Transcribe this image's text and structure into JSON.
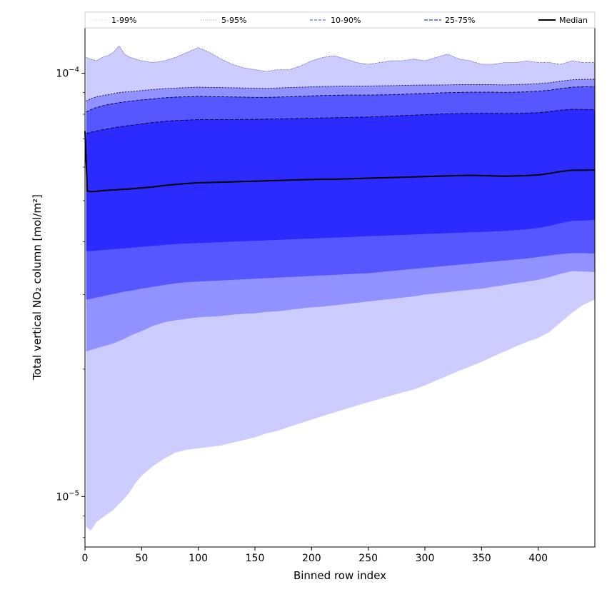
{
  "chart_data": {
    "type": "area",
    "xlabel": "Binned row index",
    "ylabel": "Total vertical NO₂ column [mol/m²]",
    "xlim": [
      0,
      450
    ],
    "ylim": [
      7.6e-06,
      0.000128
    ],
    "y_scale": "log",
    "x_ticks": [
      0,
      50,
      100,
      150,
      200,
      250,
      300,
      350,
      400
    ],
    "y_major_ticks": [
      {
        "value": 1e-05,
        "base": "10",
        "exp": "−5"
      },
      {
        "value": 0.0001,
        "base": "10",
        "exp": "−4"
      }
    ],
    "grid": false,
    "legend_position": "top",
    "bands": [
      {
        "name": "1-99%",
        "color": "#ccccff",
        "x": [
          1,
          5,
          10,
          15,
          20,
          25,
          30,
          35,
          40,
          45,
          50,
          60,
          70,
          80,
          90,
          100,
          110,
          120,
          130,
          140,
          150,
          160,
          170,
          180,
          190,
          200,
          210,
          220,
          230,
          240,
          250,
          260,
          270,
          280,
          290,
          300,
          310,
          320,
          330,
          340,
          350,
          360,
          370,
          380,
          390,
          400,
          410,
          420,
          430,
          440,
          450
        ],
        "lower": [
          8.5e-06,
          8.3e-06,
          8.7e-06,
          8.9e-06,
          9.1e-06,
          9.3e-06,
          9.6e-06,
          9.9e-06,
          1.03e-05,
          1.08e-05,
          1.12e-05,
          1.18e-05,
          1.23e-05,
          1.27e-05,
          1.29e-05,
          1.3e-05,
          1.31e-05,
          1.32e-05,
          1.34e-05,
          1.36e-05,
          1.38e-05,
          1.41e-05,
          1.43e-05,
          1.46e-05,
          1.49e-05,
          1.52e-05,
          1.55e-05,
          1.58e-05,
          1.61e-05,
          1.64e-05,
          1.67e-05,
          1.7e-05,
          1.73e-05,
          1.76e-05,
          1.79e-05,
          1.83e-05,
          1.88e-05,
          1.93e-05,
          1.98e-05,
          2.03e-05,
          2.08e-05,
          2.14e-05,
          2.2e-05,
          2.26e-05,
          2.32e-05,
          2.37e-05,
          2.45e-05,
          2.58e-05,
          2.72e-05,
          2.84e-05,
          2.92e-05
        ],
        "upper": [
          0.000109,
          0.000108,
          0.000107,
          0.000109,
          0.00011,
          0.000112,
          0.000116,
          0.000111,
          0.000109,
          0.000108,
          0.000107,
          0.000106,
          0.000107,
          0.000109,
          0.000112,
          0.000115,
          0.000112,
          0.000108,
          0.000105,
          0.000103,
          0.000102,
          0.000101,
          0.000102,
          0.000102,
          0.000104,
          0.000107,
          0.000109,
          0.00011,
          0.000108,
          0.000106,
          0.000105,
          0.000106,
          0.000107,
          0.000107,
          0.000108,
          0.000107,
          0.000109,
          0.000111,
          0.000108,
          0.000107,
          0.000105,
          0.000105,
          0.000106,
          0.000106,
          0.000107,
          0.000106,
          0.000106,
          0.000105,
          0.000107,
          0.000106,
          0.000106
        ]
      },
      {
        "name": "5-95%",
        "color": "#9191ff",
        "x": [
          1,
          5,
          10,
          15,
          20,
          25,
          30,
          35,
          40,
          45,
          50,
          60,
          70,
          80,
          90,
          100,
          110,
          120,
          130,
          140,
          150,
          160,
          170,
          180,
          190,
          200,
          210,
          220,
          230,
          240,
          250,
          260,
          270,
          280,
          290,
          300,
          310,
          320,
          330,
          340,
          350,
          360,
          370,
          380,
          390,
          400,
          410,
          420,
          430,
          440,
          450
        ],
        "lower": [
          2.2e-05,
          2.22e-05,
          2.24e-05,
          2.26e-05,
          2.28e-05,
          2.3e-05,
          2.33e-05,
          2.36e-05,
          2.4e-05,
          2.43e-05,
          2.46e-05,
          2.53e-05,
          2.58e-05,
          2.61e-05,
          2.63e-05,
          2.65e-05,
          2.66e-05,
          2.67e-05,
          2.69e-05,
          2.7e-05,
          2.71e-05,
          2.73e-05,
          2.74e-05,
          2.76e-05,
          2.78e-05,
          2.8e-05,
          2.81e-05,
          2.83e-05,
          2.85e-05,
          2.87e-05,
          2.89e-05,
          2.91e-05,
          2.93e-05,
          2.95e-05,
          2.97e-05,
          3e-05,
          3.02e-05,
          3.04e-05,
          3.06e-05,
          3.08e-05,
          3.1e-05,
          3.13e-05,
          3.16e-05,
          3.19e-05,
          3.22e-05,
          3.25e-05,
          3.3e-05,
          3.36e-05,
          3.41e-05,
          3.4e-05,
          3.39e-05
        ],
        "upper": [
          8.6e-05,
          8.7e-05,
          8.8e-05,
          8.85e-05,
          8.9e-05,
          8.95e-05,
          9e-05,
          9.03e-05,
          9.05e-05,
          9.07e-05,
          9.1e-05,
          9.15e-05,
          9.2e-05,
          9.22e-05,
          9.25e-05,
          9.27e-05,
          9.26e-05,
          9.25e-05,
          9.24e-05,
          9.23e-05,
          9.22e-05,
          9.21e-05,
          9.23e-05,
          9.25e-05,
          9.27e-05,
          9.29e-05,
          9.31e-05,
          9.32e-05,
          9.33e-05,
          9.33e-05,
          9.33e-05,
          9.34e-05,
          9.35e-05,
          9.36e-05,
          9.37e-05,
          9.38e-05,
          9.38e-05,
          9.39e-05,
          9.4e-05,
          9.4e-05,
          9.4e-05,
          9.4e-05,
          9.39e-05,
          9.4e-05,
          9.42e-05,
          9.45e-05,
          9.5e-05,
          9.58e-05,
          9.65e-05,
          9.67e-05,
          9.68e-05
        ]
      },
      {
        "name": "10-90%",
        "color": "#5757ff",
        "x": [
          1,
          5,
          10,
          15,
          20,
          25,
          30,
          35,
          40,
          45,
          50,
          60,
          70,
          80,
          90,
          100,
          110,
          120,
          130,
          140,
          150,
          160,
          170,
          180,
          190,
          200,
          210,
          220,
          230,
          240,
          250,
          260,
          270,
          280,
          290,
          300,
          310,
          320,
          330,
          340,
          350,
          360,
          370,
          380,
          390,
          400,
          410,
          420,
          430,
          440,
          450
        ],
        "lower": [
          2.92e-05,
          2.93e-05,
          2.95e-05,
          2.97e-05,
          2.99e-05,
          3.01e-05,
          3.03e-05,
          3.05e-05,
          3.06e-05,
          3.08e-05,
          3.1e-05,
          3.13e-05,
          3.16e-05,
          3.19e-05,
          3.21e-05,
          3.22e-05,
          3.23e-05,
          3.24e-05,
          3.25e-05,
          3.26e-05,
          3.27e-05,
          3.28e-05,
          3.29e-05,
          3.3e-05,
          3.31e-05,
          3.32e-05,
          3.33e-05,
          3.34e-05,
          3.35e-05,
          3.36e-05,
          3.37e-05,
          3.39e-05,
          3.41e-05,
          3.43e-05,
          3.45e-05,
          3.47e-05,
          3.49e-05,
          3.51e-05,
          3.53e-05,
          3.55e-05,
          3.57e-05,
          3.59e-05,
          3.61e-05,
          3.63e-05,
          3.65e-05,
          3.68e-05,
          3.71e-05,
          3.74e-05,
          3.76e-05,
          3.76e-05,
          3.75e-05
        ],
        "upper": [
          8.1e-05,
          8.2e-05,
          8.3e-05,
          8.37e-05,
          8.43e-05,
          8.48e-05,
          8.52e-05,
          8.56e-05,
          8.59e-05,
          8.62e-05,
          8.65e-05,
          8.7e-05,
          8.75e-05,
          8.78e-05,
          8.8e-05,
          8.82e-05,
          8.81e-05,
          8.8e-05,
          8.79e-05,
          8.78e-05,
          8.77e-05,
          8.77e-05,
          8.78e-05,
          8.8e-05,
          8.82e-05,
          8.84e-05,
          8.86e-05,
          8.87e-05,
          8.88e-05,
          8.88e-05,
          8.88e-05,
          8.89e-05,
          8.9e-05,
          8.92e-05,
          8.94e-05,
          8.96e-05,
          8.98e-05,
          9e-05,
          9.01e-05,
          9.02e-05,
          9.02e-05,
          9.02e-05,
          9.01e-05,
          9.02e-05,
          9.04e-05,
          9.07e-05,
          9.12e-05,
          9.2e-05,
          9.27e-05,
          9.29e-05,
          9.3e-05
        ]
      },
      {
        "name": "25-75%",
        "color": "#2b2bff",
        "x": [
          1,
          5,
          10,
          15,
          20,
          25,
          30,
          35,
          40,
          45,
          50,
          60,
          70,
          80,
          90,
          100,
          110,
          120,
          130,
          140,
          150,
          160,
          170,
          180,
          190,
          200,
          210,
          220,
          230,
          240,
          250,
          260,
          270,
          280,
          290,
          300,
          310,
          320,
          330,
          340,
          350,
          360,
          370,
          380,
          390,
          400,
          410,
          420,
          430,
          440,
          450
        ],
        "lower": [
          3.8e-05,
          3.8e-05,
          3.81e-05,
          3.82e-05,
          3.83e-05,
          3.84e-05,
          3.85e-05,
          3.86e-05,
          3.87e-05,
          3.88e-05,
          3.89e-05,
          3.91e-05,
          3.93e-05,
          3.95e-05,
          3.96e-05,
          3.97e-05,
          3.98e-05,
          3.99e-05,
          4e-05,
          4.01e-05,
          4.02e-05,
          4.03e-05,
          4.04e-05,
          4.05e-05,
          4.06e-05,
          4.07e-05,
          4.08e-05,
          4.09e-05,
          4.1e-05,
          4.11e-05,
          4.12e-05,
          4.13e-05,
          4.14e-05,
          4.15e-05,
          4.16e-05,
          4.17e-05,
          4.18e-05,
          4.19e-05,
          4.2e-05,
          4.21e-05,
          4.22e-05,
          4.23e-05,
          4.24e-05,
          4.26e-05,
          4.28e-05,
          4.31e-05,
          4.36e-05,
          4.43e-05,
          4.48e-05,
          4.49e-05,
          4.5e-05
        ],
        "upper": [
          7.2e-05,
          7.25e-05,
          7.3e-05,
          7.35e-05,
          7.39e-05,
          7.43e-05,
          7.47e-05,
          7.5e-05,
          7.53e-05,
          7.56e-05,
          7.59e-05,
          7.65e-05,
          7.7e-05,
          7.73e-05,
          7.75e-05,
          7.77e-05,
          7.77e-05,
          7.77e-05,
          7.77e-05,
          7.78e-05,
          7.78e-05,
          7.79e-05,
          7.8e-05,
          7.81e-05,
          7.82e-05,
          7.83e-05,
          7.84e-05,
          7.85e-05,
          7.86e-05,
          7.87e-05,
          7.88e-05,
          7.9e-05,
          7.92e-05,
          7.94e-05,
          7.96e-05,
          7.98e-05,
          8e-05,
          8.02e-05,
          8.03e-05,
          8.04e-05,
          8.04e-05,
          8.04e-05,
          8.03e-05,
          8.04e-05,
          8.05e-05,
          8.07e-05,
          8.12e-05,
          8.18e-05,
          8.22e-05,
          8.21e-05,
          8.2e-05
        ]
      }
    ],
    "series": [
      {
        "name": "Median",
        "color": "#000000",
        "x": [
          0,
          1,
          2,
          5,
          10,
          15,
          20,
          25,
          30,
          40,
          50,
          60,
          70,
          80,
          90,
          100,
          110,
          120,
          130,
          140,
          150,
          160,
          170,
          180,
          190,
          200,
          210,
          220,
          230,
          240,
          250,
          260,
          270,
          280,
          290,
          300,
          310,
          320,
          330,
          340,
          350,
          360,
          370,
          380,
          390,
          400,
          410,
          420,
          430,
          440,
          450
        ],
        "y": [
          7.3e-05,
          6.2e-05,
          5.27e-05,
          5.25e-05,
          5.26e-05,
          5.28e-05,
          5.29e-05,
          5.3e-05,
          5.31e-05,
          5.33e-05,
          5.36e-05,
          5.39e-05,
          5.43e-05,
          5.46e-05,
          5.49e-05,
          5.51e-05,
          5.52e-05,
          5.53e-05,
          5.54e-05,
          5.55e-05,
          5.56e-05,
          5.57e-05,
          5.58e-05,
          5.59e-05,
          5.6e-05,
          5.61e-05,
          5.62e-05,
          5.62e-05,
          5.63e-05,
          5.64e-05,
          5.65e-05,
          5.66e-05,
          5.67e-05,
          5.68e-05,
          5.69e-05,
          5.7e-05,
          5.71e-05,
          5.72e-05,
          5.73e-05,
          5.74e-05,
          5.73e-05,
          5.72e-05,
          5.71e-05,
          5.72e-05,
          5.73e-05,
          5.75e-05,
          5.8e-05,
          5.86e-05,
          5.9e-05,
          5.9e-05,
          5.91e-05
        ]
      }
    ],
    "legend": [
      {
        "label": "1-99%",
        "color": "#c8c8ff",
        "dash": "1,1",
        "width": 0.8
      },
      {
        "label": "5-95%",
        "color": "#8c8cff",
        "dash": "1.5,1.5",
        "width": 0.8
      },
      {
        "label": "10-90%",
        "color": "#6464ff",
        "dash": "4,2",
        "width": 1.2
      },
      {
        "label": "25-75%",
        "color": "#3232ff",
        "dash": "5,2",
        "width": 1.2
      },
      {
        "label": "Median",
        "color": "#000000",
        "dash": "",
        "width": 2
      }
    ]
  }
}
